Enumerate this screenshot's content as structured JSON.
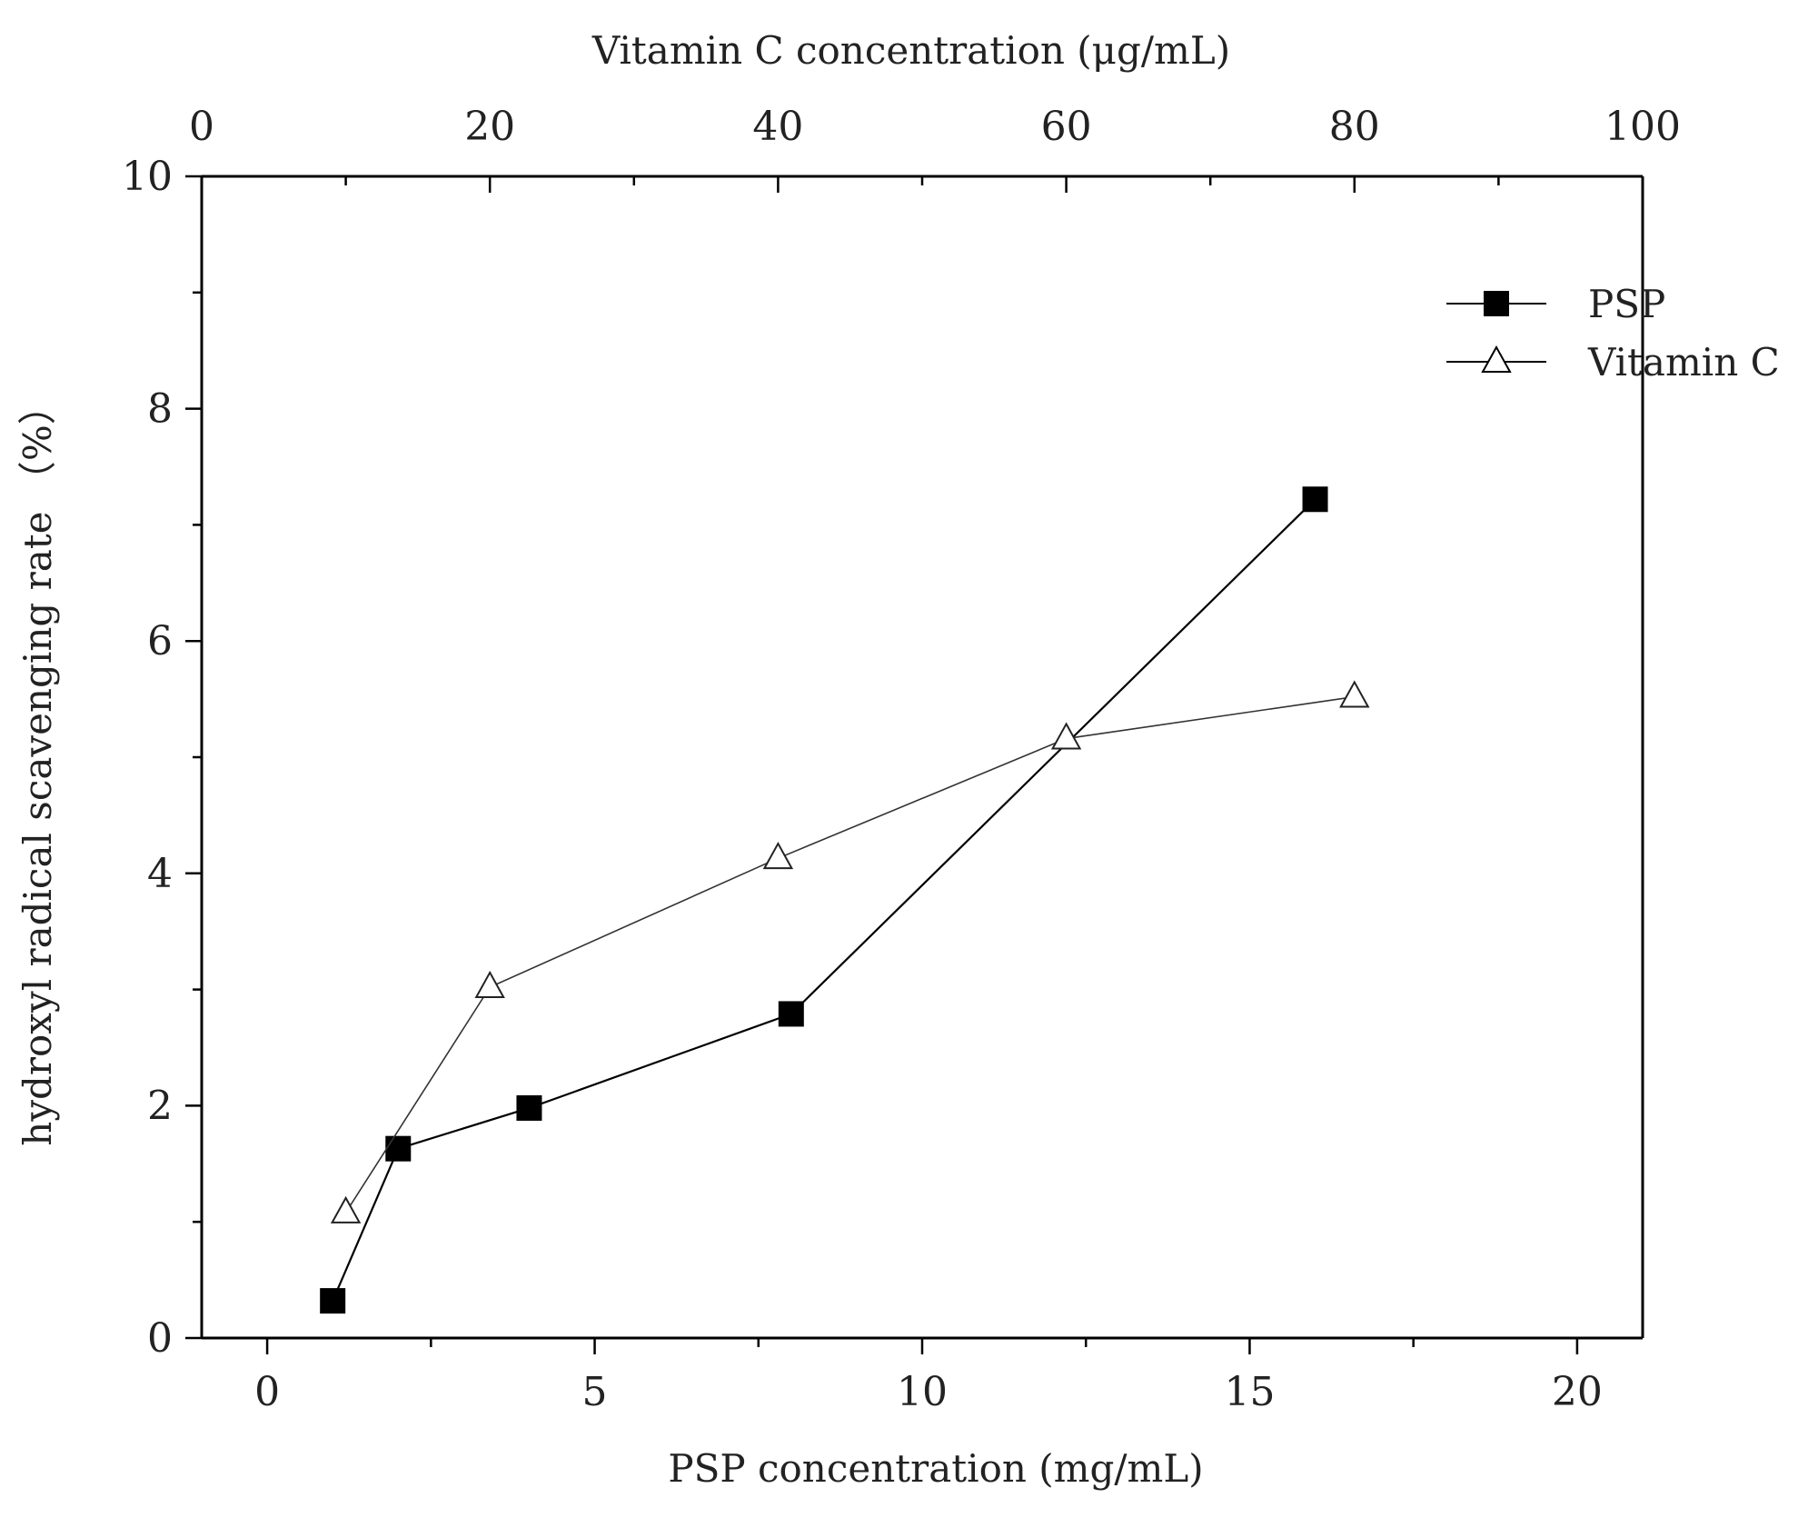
{
  "chart_data": {
    "type": "line",
    "title": "",
    "xlabel": "PSP concentration (mg/mL)",
    "x2label": "Vitamin C concentration  (μg/mL)",
    "ylabel": "hydroxyl radical scavenging rate  （%）",
    "xlim": [
      -1,
      21
    ],
    "x2lim": [
      0,
      100
    ],
    "ylim": [
      0,
      10
    ],
    "xticks": [
      0,
      5,
      10,
      15,
      20
    ],
    "x2ticks": [
      0,
      20,
      40,
      60,
      80,
      100
    ],
    "yticks": [
      0,
      2,
      4,
      6,
      8,
      10
    ],
    "grid": false,
    "legend_position": "top-right",
    "series": [
      {
        "name": "PSP",
        "axis": "bottom",
        "marker": "filled-square",
        "x": [
          1,
          2,
          4,
          8,
          16
        ],
        "y": [
          0.32,
          1.63,
          1.98,
          2.79,
          7.22
        ]
      },
      {
        "name": "Vitamin C",
        "axis": "top",
        "marker": "open-triangle",
        "x": [
          10,
          20,
          40,
          60,
          80
        ],
        "y": [
          1.08,
          3.02,
          4.13,
          5.16,
          5.52
        ]
      }
    ]
  }
}
